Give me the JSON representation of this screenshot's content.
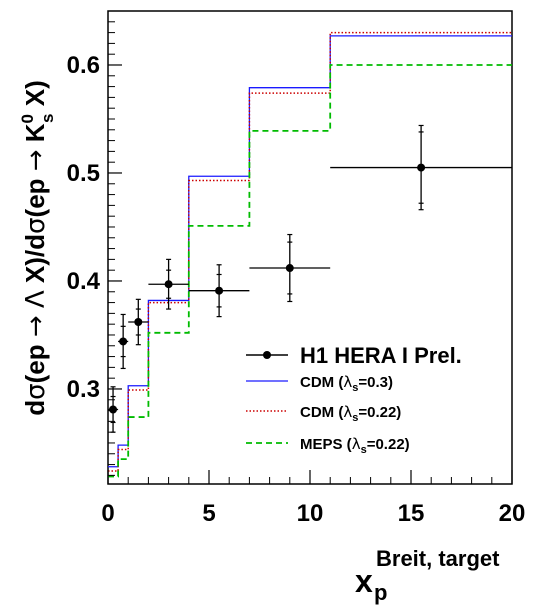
{
  "chart_data": {
    "type": "step",
    "xlabel": "x",
    "xlabel_sub": "p",
    "xlabel_sup": "Breit, target",
    "ylabel_parts": {
      "a": "d",
      "sigma": "σ",
      "b": "(ep ",
      "arrow": "→",
      "c": " ",
      "lambda": "Λ",
      "d": " X)/d",
      "e": "(ep ",
      "f": " K",
      "k_sup": "0",
      "k_sub": "s",
      "g": " X)"
    },
    "xlim": [
      0,
      20
    ],
    "ylim": [
      0.212,
      0.65
    ],
    "x_ticks": [
      0,
      5,
      10,
      15,
      20
    ],
    "x_tick_labels": [
      "0",
      "5",
      "10",
      "15",
      "20"
    ],
    "y_ticks": [
      0.3,
      0.4,
      0.5,
      0.6
    ],
    "y_tick_labels": [
      "0.3",
      "0.4",
      "0.5",
      "0.6"
    ],
    "bin_edges": [
      0,
      0.5,
      1,
      2,
      4,
      7,
      11,
      20
    ],
    "series": [
      {
        "label": "CDM (λs=0.3)",
        "label_parts": {
          "a": "CDM (",
          "lambda": "λ",
          "sub": "s",
          "b": "=0.3)"
        },
        "kind": "step",
        "color": "#1a1aff",
        "dash": "solid",
        "values": [
          0.228,
          0.248,
          0.303,
          0.382,
          0.497,
          0.579,
          0.627
        ]
      },
      {
        "label": "CDM (λs=0.22)",
        "label_parts": {
          "a": "CDM (",
          "lambda": "λ",
          "sub": "s",
          "b": "=0.22)"
        },
        "kind": "step",
        "color": "#cc0000",
        "dash": "dotted",
        "values": [
          0.224,
          0.244,
          0.299,
          0.38,
          0.493,
          0.574,
          0.63
        ]
      },
      {
        "label": "MEPS (λs=0.22)",
        "label_parts": {
          "a": "MEPS (",
          "lambda": "λ",
          "sub": "s",
          "b": "=0.22)"
        },
        "kind": "step",
        "color": "#00bb00",
        "dash": "dashed",
        "values": [
          0.219,
          0.235,
          0.274,
          0.352,
          0.451,
          0.539,
          0.6
        ]
      }
    ],
    "data_points": {
      "label": "H1 HERA I Prel.",
      "color": "#000000",
      "points": [
        {
          "x": 0.25,
          "xlo": 0.0,
          "xhi": 0.5,
          "y": 0.281,
          "stat": 0.012,
          "tot": 0.021
        },
        {
          "x": 0.75,
          "xlo": 0.5,
          "xhi": 1.0,
          "y": 0.344,
          "stat": 0.014,
          "tot": 0.025
        },
        {
          "x": 1.5,
          "xlo": 1.0,
          "xhi": 2.0,
          "y": 0.362,
          "stat": 0.012,
          "tot": 0.021
        },
        {
          "x": 3.0,
          "xlo": 2.0,
          "xhi": 4.0,
          "y": 0.397,
          "stat": 0.013,
          "tot": 0.023
        },
        {
          "x": 5.5,
          "xlo": 4.0,
          "xhi": 7.0,
          "y": 0.391,
          "stat": 0.015,
          "tot": 0.024
        },
        {
          "x": 9.0,
          "xlo": 7.0,
          "xhi": 11.0,
          "y": 0.412,
          "stat": 0.024,
          "tot": 0.031
        },
        {
          "x": 15.5,
          "xlo": 11.0,
          "xhi": 20.0,
          "y": 0.505,
          "stat": 0.033,
          "tot": 0.039
        }
      ]
    },
    "legend_position": "lower-right",
    "grid": false
  }
}
